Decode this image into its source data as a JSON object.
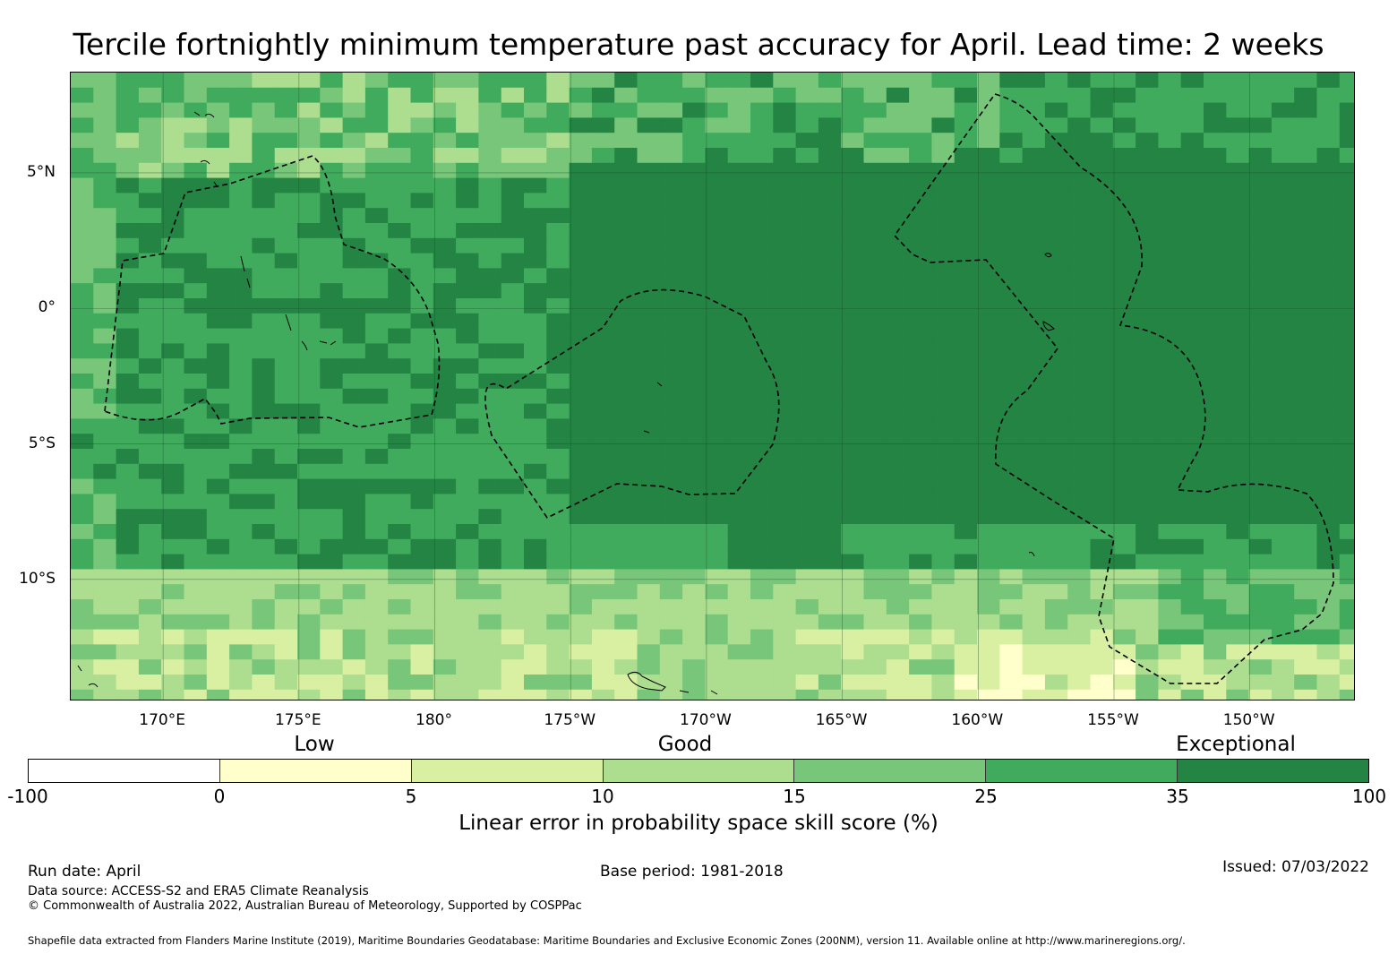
{
  "title": "Tercile fortnightly minimum temperature past accuracy for April. Lead time: 2 weeks",
  "map": {
    "lat_labels": [
      "5°N",
      "0°",
      "5°S",
      "10°S"
    ],
    "lon_labels": [
      "170°E",
      "175°E",
      "180°",
      "175°W",
      "170°W",
      "165°W",
      "160°W",
      "155°W",
      "150°W"
    ],
    "lat_range": [
      -14.5,
      8.7
    ],
    "lon_range": [
      166.6,
      213.9
    ],
    "lat_gridlines": [
      5,
      0,
      -5,
      -10
    ],
    "lon_gridlines": [
      170,
      175,
      180,
      185,
      190,
      195,
      200,
      205,
      210
    ],
    "boundary": "dashed-eez-lines",
    "coastline_color": "#000000"
  },
  "legend": {
    "categories": [
      "Low",
      "Good",
      "Exceptional"
    ],
    "ticks": [
      "-100",
      "0",
      "5",
      "10",
      "15",
      "25",
      "35",
      "100"
    ],
    "colors": [
      "#ffffff",
      "#ffffcc",
      "#d9f0a3",
      "#addd8e",
      "#78c679",
      "#41ab5d",
      "#238443"
    ],
    "title": "Linear error in probability space skill score (%)"
  },
  "footer": {
    "run_date": "Run date: April",
    "base_period": "Base period: 1981-2018",
    "issued": "Issued: 07/03/2022",
    "data_source": "Data source: ACCESS-S2 and ERA5 Climate Reanalysis",
    "copyright": "© Commonwealth of Australia 2022, Australian Bureau of Meteorology, Supported by COSPPac",
    "shapefile": "Shapefile data extracted from Flanders Marine Institute (2019), Maritime Boundaries Geodatabase: Maritime Boundaries and Exclusive Economic Zones (200NM), version 11. Available online at http://www.marineregions.org/."
  }
}
